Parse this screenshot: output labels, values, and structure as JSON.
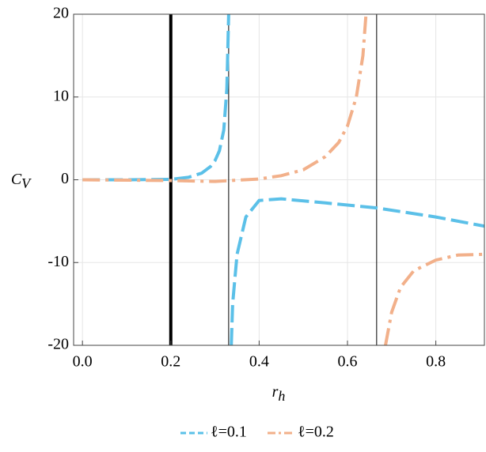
{
  "chart_data": {
    "type": "line",
    "x_label": {
      "main": "r",
      "sub": "h"
    },
    "y_label": {
      "main": "C",
      "sub": "V"
    },
    "xlim": [
      -0.02,
      0.91
    ],
    "ylim": [
      -20,
      20
    ],
    "xticks": [
      {
        "value": 0,
        "label": "0.0"
      },
      0.2,
      0.4,
      0.6,
      0.8
    ],
    "yticks": [
      -20,
      -10,
      0,
      10,
      20
    ],
    "grid": true,
    "legend": "bottom",
    "vertical_lines": [
      0.2,
      0.331,
      0.666
    ],
    "series": [
      {
        "name": "ℓ=0.1",
        "color": "#5bc0e8",
        "style": "dashed",
        "x": [
          0,
          0.1,
          0.2,
          0.24,
          0.27,
          0.29,
          0.3,
          0.31,
          0.32,
          0.327,
          0.331,
          null,
          0.337,
          0.34,
          0.35,
          0.37,
          0.4,
          0.45,
          0.55,
          0.666,
          0.8,
          0.91
        ],
        "values": [
          0,
          0,
          0.05,
          0.3,
          0.8,
          1.6,
          2.3,
          3.5,
          6,
          11,
          20,
          null,
          -20,
          -15,
          -9,
          -4.5,
          -2.5,
          -2.3,
          -2.8,
          -3.4,
          -4.5,
          -5.6
        ]
      },
      {
        "name": "ℓ=0.2",
        "color": "#f2b08a",
        "style": "dashdot",
        "x": [
          0,
          0.2,
          0.3,
          0.4,
          0.45,
          0.5,
          0.55,
          0.58,
          0.6,
          0.62,
          0.635,
          0.642,
          null,
          0.686,
          0.7,
          0.72,
          0.75,
          0.8,
          0.85,
          0.91
        ],
        "values": [
          0,
          -0.1,
          -0.2,
          0.1,
          0.5,
          1.2,
          2.8,
          4.5,
          6.5,
          10,
          15,
          20,
          null,
          -20,
          -16,
          -13,
          -11,
          -9.7,
          -9.1,
          -9
        ]
      }
    ]
  }
}
